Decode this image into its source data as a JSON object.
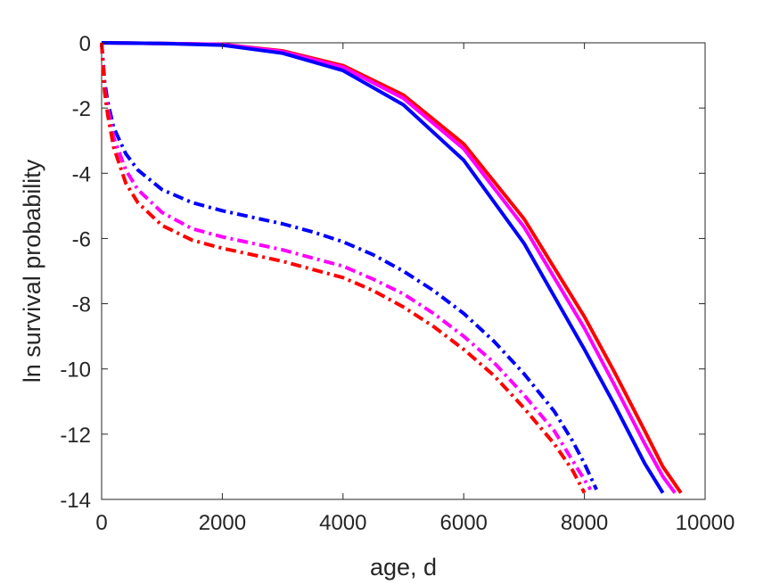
{
  "chart_data": {
    "type": "line",
    "title": "",
    "xlabel": "age, d",
    "ylabel": "ln survival probability",
    "xlim": [
      0,
      10000
    ],
    "ylim": [
      -14,
      0
    ],
    "xticks": [
      0,
      2000,
      4000,
      6000,
      8000,
      10000
    ],
    "yticks": [
      0,
      -2,
      -4,
      -6,
      -8,
      -10,
      -12,
      -14
    ],
    "xtick_labels": [
      "0",
      "2000",
      "4000",
      "6000",
      "8000",
      "10000"
    ],
    "ytick_labels": [
      "0",
      "-2",
      "-4",
      "-6",
      "-8",
      "-10",
      "-12",
      "-14"
    ],
    "grid": false,
    "legend": "none",
    "series": [
      {
        "color": "#ff0000",
        "style": "solid",
        "x": [
          0,
          1000,
          2000,
          3000,
          4000,
          5000,
          6000,
          7000,
          8000,
          8500,
          9000,
          9300,
          9600
        ],
        "y": [
          0,
          -0.02,
          -0.05,
          -0.25,
          -0.7,
          -1.6,
          -3.1,
          -5.4,
          -8.4,
          -10.1,
          -11.9,
          -13.0,
          -13.8
        ]
      },
      {
        "color": "#ff00ff",
        "style": "solid",
        "x": [
          0,
          1000,
          2000,
          3000,
          4000,
          5000,
          6000,
          7000,
          8000,
          8500,
          9000,
          9300,
          9500
        ],
        "y": [
          0,
          -0.02,
          -0.05,
          -0.27,
          -0.75,
          -1.7,
          -3.25,
          -5.65,
          -8.75,
          -10.5,
          -12.3,
          -13.3,
          -13.8
        ]
      },
      {
        "color": "#0000ff",
        "style": "solid",
        "x": [
          0,
          1000,
          2000,
          3000,
          4000,
          5000,
          6000,
          7000,
          8000,
          8500,
          9000,
          9300
        ],
        "y": [
          0,
          -0.02,
          -0.07,
          -0.32,
          -0.85,
          -1.9,
          -3.6,
          -6.15,
          -9.4,
          -11.1,
          -12.9,
          -13.8
        ]
      },
      {
        "color": "#0000ff",
        "style": "dashdot",
        "x": [
          0,
          50,
          100,
          200,
          400,
          600,
          1000,
          1500,
          2000,
          2500,
          3000,
          3500,
          4000,
          4500,
          5000,
          5500,
          6000,
          6500,
          7000,
          7500,
          7800,
          8000,
          8200
        ],
        "y": [
          0,
          -1.2,
          -1.8,
          -2.6,
          -3.4,
          -3.9,
          -4.5,
          -4.9,
          -5.15,
          -5.35,
          -5.55,
          -5.8,
          -6.1,
          -6.5,
          -7.0,
          -7.6,
          -8.3,
          -9.15,
          -10.15,
          -11.3,
          -12.2,
          -12.9,
          -13.7
        ]
      },
      {
        "color": "#ff00ff",
        "style": "dashdot",
        "x": [
          0,
          50,
          100,
          200,
          400,
          600,
          1000,
          1500,
          2000,
          2500,
          3000,
          3500,
          4000,
          4500,
          5000,
          5500,
          6000,
          6500,
          7000,
          7500,
          7800,
          8100
        ],
        "y": [
          0,
          -1.4,
          -2.0,
          -2.9,
          -3.9,
          -4.5,
          -5.2,
          -5.7,
          -5.95,
          -6.15,
          -6.35,
          -6.6,
          -6.85,
          -7.25,
          -7.7,
          -8.3,
          -9.0,
          -9.8,
          -10.8,
          -11.9,
          -12.8,
          -13.7
        ]
      },
      {
        "color": "#ff0000",
        "style": "dashdot",
        "x": [
          0,
          50,
          100,
          200,
          400,
          600,
          1000,
          1500,
          2000,
          2500,
          3000,
          3500,
          4000,
          4500,
          5000,
          5500,
          6000,
          6500,
          7000,
          7500,
          7800,
          8000
        ],
        "y": [
          0,
          -1.5,
          -2.2,
          -3.2,
          -4.3,
          -4.9,
          -5.6,
          -6.05,
          -6.3,
          -6.5,
          -6.7,
          -6.95,
          -7.2,
          -7.6,
          -8.1,
          -8.7,
          -9.4,
          -10.2,
          -11.2,
          -12.3,
          -13.1,
          -13.8
        ]
      }
    ]
  }
}
